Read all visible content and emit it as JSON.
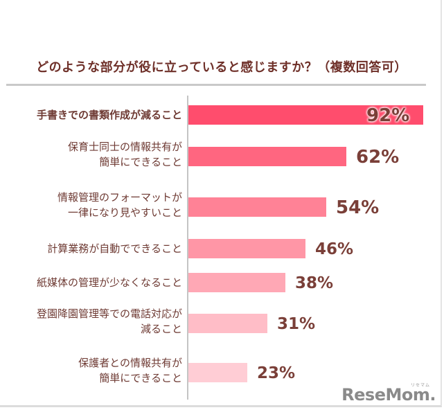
{
  "chart_data": {
    "type": "bar",
    "orientation": "horizontal",
    "title": "どのような部分が役に立っていると感じますか？（複数回答可）",
    "categories": [
      "手書きでの書類作成が減ること",
      "保育士同士の情報共有が簡単にできること",
      "情報管理のフォーマットが一律になり見やすいこと",
      "計算業務が自動でできること",
      "紙媒体の管理が少なくなること",
      "登園降園管理等での電話対応が減ること",
      "保護者との情報共有が簡単にできること"
    ],
    "values": [
      92,
      62,
      54,
      46,
      38,
      31,
      23
    ],
    "unit": "%",
    "xlabel": "",
    "ylabel": "",
    "xlim": [
      0,
      100
    ],
    "grid": false,
    "legend": null,
    "colors": [
      "#ff4d6d",
      "#ff6680",
      "#ff8296",
      "#ff96a6",
      "#ffa8b5",
      "#ffbdc7",
      "#ffcdd5"
    ]
  },
  "title": "どのような部分が役に立っていると感じますか？（複数回答可）",
  "rows": [
    {
      "line1": "手書きでの書類作成が減ること",
      "line2": "",
      "value_label": "92%",
      "bold": true
    },
    {
      "line1": "保育士同士の情報共有が",
      "line2": "簡単にできること",
      "value_label": "62%",
      "bold": false
    },
    {
      "line1": "情報管理のフォーマットが",
      "line2": "一律になり見やすいこと",
      "value_label": "54%",
      "bold": false
    },
    {
      "line1": "計算業務が自動でできること",
      "line2": "",
      "value_label": "46%",
      "bold": false
    },
    {
      "line1": "紙媒体の管理が少なくなること",
      "line2": "",
      "value_label": "38%",
      "bold": false
    },
    {
      "line1": "登園降園管理等での電話対応が",
      "line2": "減ること",
      "value_label": "31%",
      "bold": false
    },
    {
      "line1": "保護者との情報共有が",
      "line2": "簡単にできること",
      "value_label": "23%",
      "bold": false
    }
  ],
  "watermark": {
    "text": "ReseMom.",
    "ruby": "リセマム"
  }
}
